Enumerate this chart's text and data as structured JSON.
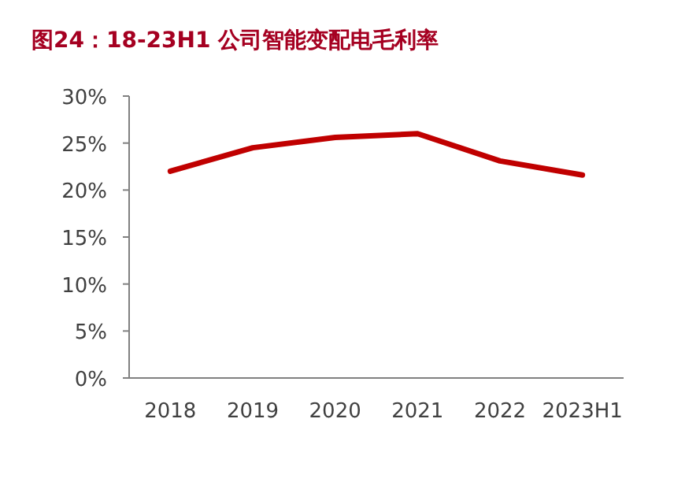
{
  "chart_data": {
    "type": "line",
    "title": "图24：18-23H1 公司智能变配电毛利率",
    "categories": [
      "2018",
      "2019",
      "2020",
      "2021",
      "2022",
      "2023H1"
    ],
    "series": [
      {
        "color": "#c00000",
        "values": [
          22.0,
          24.5,
          25.6,
          26.0,
          23.1,
          21.6
        ]
      }
    ],
    "ylim": [
      0,
      30
    ],
    "yticks": [
      {
        "value": 0,
        "label": "0%"
      },
      {
        "value": 5,
        "label": "5%"
      },
      {
        "value": 10,
        "label": "10%"
      },
      {
        "value": 15,
        "label": "15%"
      },
      {
        "value": 20,
        "label": "20%"
      },
      {
        "value": 25,
        "label": "25%"
      },
      {
        "value": 30,
        "label": "30%"
      }
    ],
    "marker": "none",
    "grid": false
  }
}
